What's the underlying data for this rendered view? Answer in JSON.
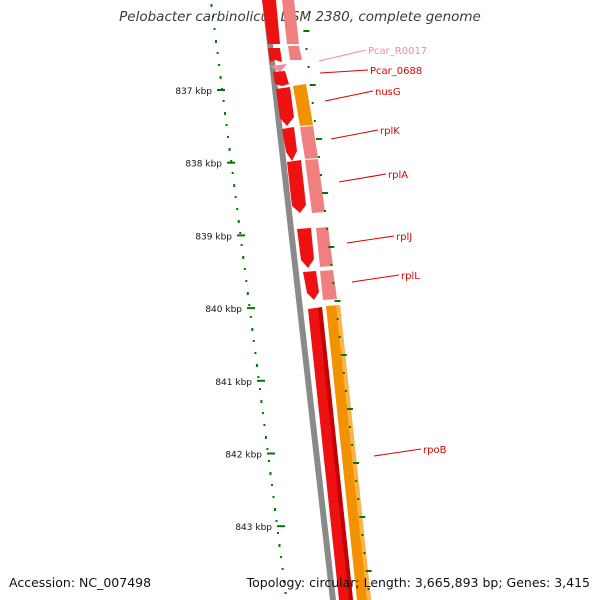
{
  "title": "Pelobacter carbinolicus DSM 2380, complete genome",
  "footer": {
    "accession": "Accession: NC_007498",
    "summary": "Topology: circular; Length: 3,665,893 bp; Genes: 3,415"
  },
  "ruler": {
    "unit": "kbp",
    "labels": [
      "837 kbp",
      "838 kbp",
      "839 kbp",
      "840 kbp",
      "841 kbp",
      "842 kbp",
      "843 kbp"
    ]
  },
  "genes": [
    {
      "name": "Pcar_R0017",
      "color": "#f08aa6"
    },
    {
      "name": "Pcar_0688",
      "color": "#dd0000"
    },
    {
      "name": "nusG",
      "color": "#dd0000"
    },
    {
      "name": "rplK",
      "color": "#dd0000"
    },
    {
      "name": "rplA",
      "color": "#dd0000"
    },
    {
      "name": "rplJ",
      "color": "#dd0000"
    },
    {
      "name": "rplL",
      "color": "#dd0000"
    },
    {
      "name": "rpoB",
      "color": "#dd0000"
    }
  ],
  "colors": {
    "cds": "#ee0000",
    "cds_light": "#f08080",
    "rna": "#f08aa6",
    "orange": "#f39200",
    "gc_ticks": "#007700",
    "backbone": "#888888"
  }
}
